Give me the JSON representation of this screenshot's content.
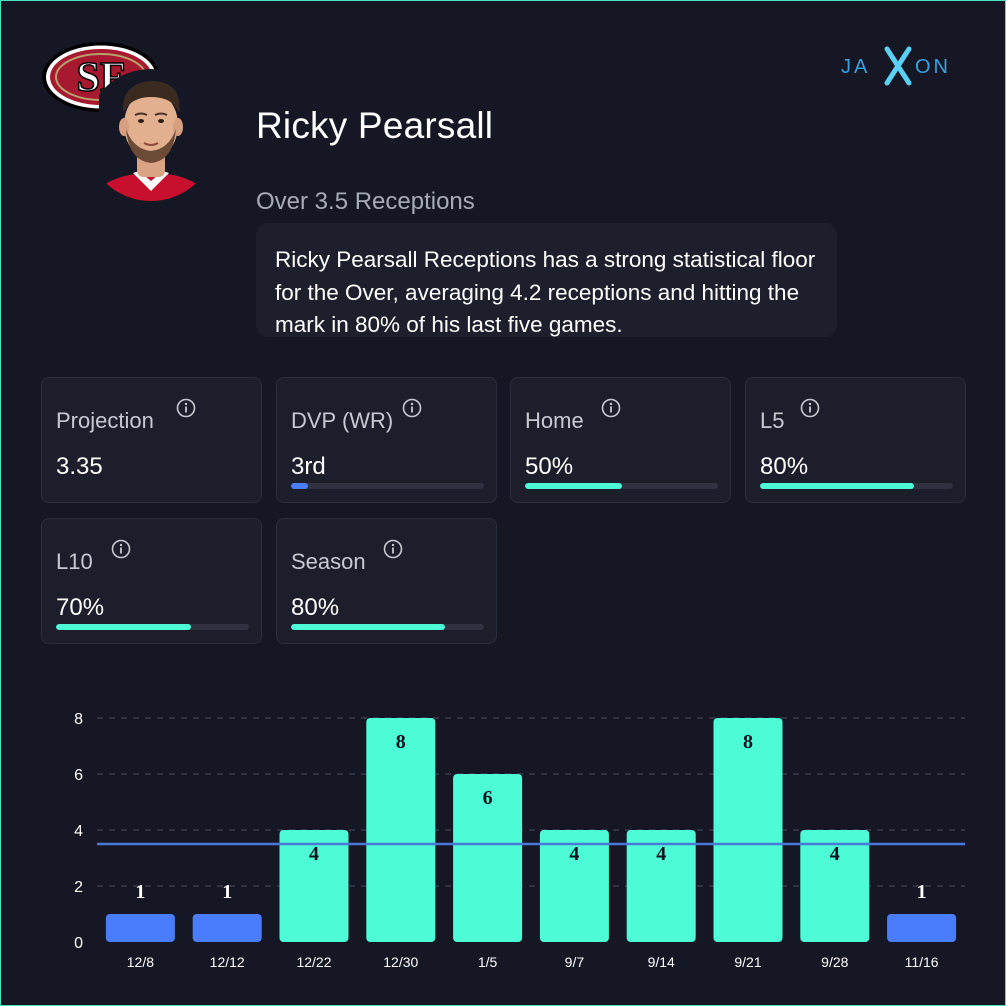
{
  "player": {
    "name": "Ricky Pearsall",
    "prop": "Over 3.5 Receptions",
    "summary": "Ricky Pearsall Receptions has a strong statistical floor for the Over, averaging 4.2 receptions and hitting the mark in 80% of his last five games."
  },
  "brand": {
    "name": "JAXON",
    "color": "#3aa0e0"
  },
  "team_logo": {
    "icon": "49ers-logo",
    "text": "SF"
  },
  "colors": {
    "accent": "#4dfbd6",
    "blue": "#4a7dfb",
    "line": "#4a78d8",
    "card_bg": "#1c1e2b",
    "page_bg": "#151725"
  },
  "stats": [
    {
      "label": "Projection",
      "value": "3.35",
      "progress": null,
      "bar_color": null
    },
    {
      "label": "DVP (WR)",
      "value": "3rd",
      "progress": 0.09,
      "bar_color": "#4a7dfb"
    },
    {
      "label": "Home",
      "value": "50%",
      "progress": 0.5,
      "bar_color": "#4dfbd6"
    },
    {
      "label": "L5",
      "value": "80%",
      "progress": 0.8,
      "bar_color": "#4dfbd6"
    },
    {
      "label": "L10",
      "value": "70%",
      "progress": 0.7,
      "bar_color": "#4dfbd6"
    },
    {
      "label": "Season",
      "value": "80%",
      "progress": 0.8,
      "bar_color": "#4dfbd6"
    }
  ],
  "chart_data": {
    "type": "bar",
    "categories": [
      "12/8",
      "12/12",
      "12/22",
      "12/30",
      "1/5",
      "9/7",
      "9/14",
      "9/21",
      "9/28",
      "11/16"
    ],
    "values": [
      1,
      1,
      4,
      8,
      6,
      4,
      4,
      8,
      4,
      1
    ],
    "threshold": 3.5,
    "ylim": [
      0,
      8
    ],
    "yticks": [
      0,
      2,
      4,
      6,
      8
    ],
    "grid": true,
    "color_over": "#4dfbd6",
    "color_under": "#4a7dfb"
  }
}
